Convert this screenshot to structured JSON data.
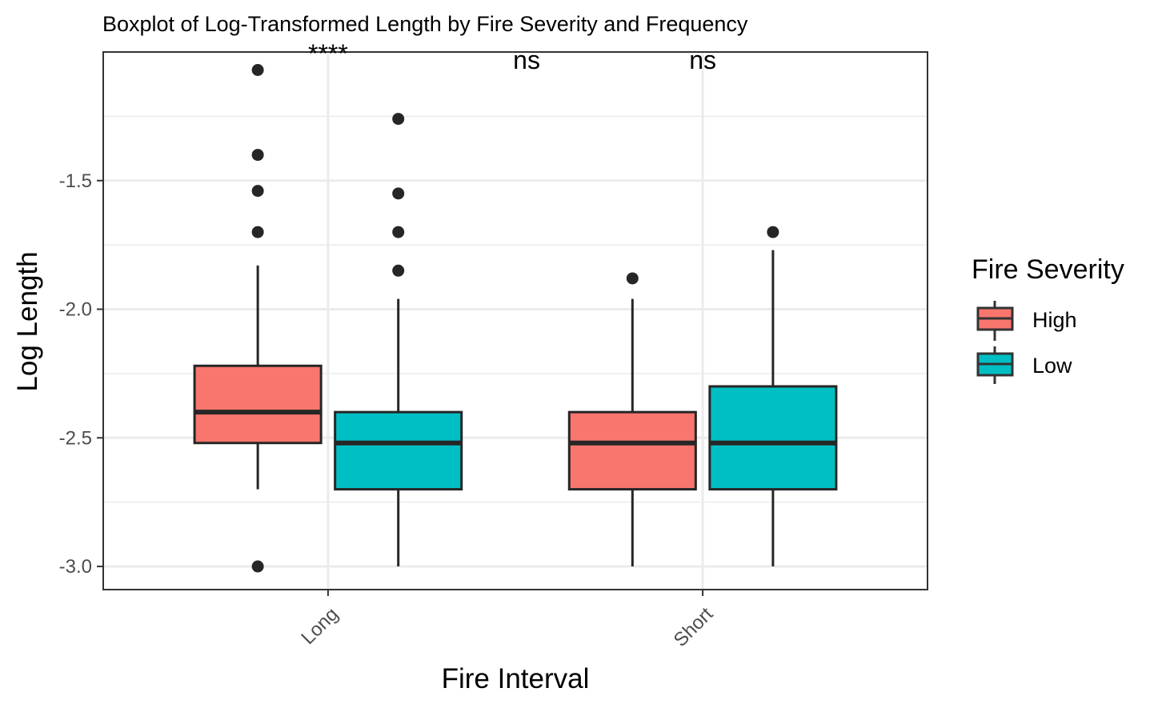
{
  "chart_data": {
    "type": "boxplot",
    "title": "Boxplot of Log-Transformed Length by Fire Severity and Frequency",
    "xlabel": "Fire Interval",
    "ylabel": "Log Length",
    "ylim": [
      -3.09,
      -1.0
    ],
    "yticks": [
      -3.0,
      -2.5,
      -2.0,
      -1.5
    ],
    "ytick_labels": [
      "-3.0",
      "-2.5",
      "-2.0",
      "-1.5"
    ],
    "categories": [
      "Long",
      "Short"
    ],
    "grid": true,
    "legend": {
      "title": "Fire Severity",
      "position": "right",
      "entries": [
        {
          "label": "High",
          "color": "#F8766D"
        },
        {
          "label": "Low",
          "color": "#00BFC4"
        }
      ]
    },
    "annotations": [
      {
        "text": "****",
        "x": "Long",
        "y": -1.04
      },
      {
        "text": "ns",
        "x": "Long-Short midpoint",
        "y": -1.04
      },
      {
        "text": "ns",
        "x": "Short",
        "y": -1.04
      }
    ],
    "series": [
      {
        "name": "High",
        "color": "#F8766D",
        "boxes": [
          {
            "category": "Long",
            "whisker_low": -2.7,
            "q1": -2.52,
            "median": -2.4,
            "q3": -2.22,
            "whisker_high": -1.83,
            "outliers": [
              -1.07,
              -1.4,
              -1.54,
              -1.7,
              -3.0
            ]
          },
          {
            "category": "Short",
            "whisker_low": -3.0,
            "q1": -2.7,
            "median": -2.52,
            "q3": -2.4,
            "whisker_high": -1.96,
            "outliers": [
              -1.88
            ]
          }
        ]
      },
      {
        "name": "Low",
        "color": "#00BFC4",
        "boxes": [
          {
            "category": "Long",
            "whisker_low": -3.0,
            "q1": -2.7,
            "median": -2.52,
            "q3": -2.4,
            "whisker_high": -1.96,
            "outliers": [
              -1.26,
              -1.55,
              -1.7,
              -1.85
            ]
          },
          {
            "category": "Short",
            "whisker_low": -3.0,
            "q1": -2.7,
            "median": -2.52,
            "q3": -2.3,
            "whisker_high": -1.77,
            "outliers": [
              -1.7
            ]
          }
        ]
      }
    ]
  }
}
